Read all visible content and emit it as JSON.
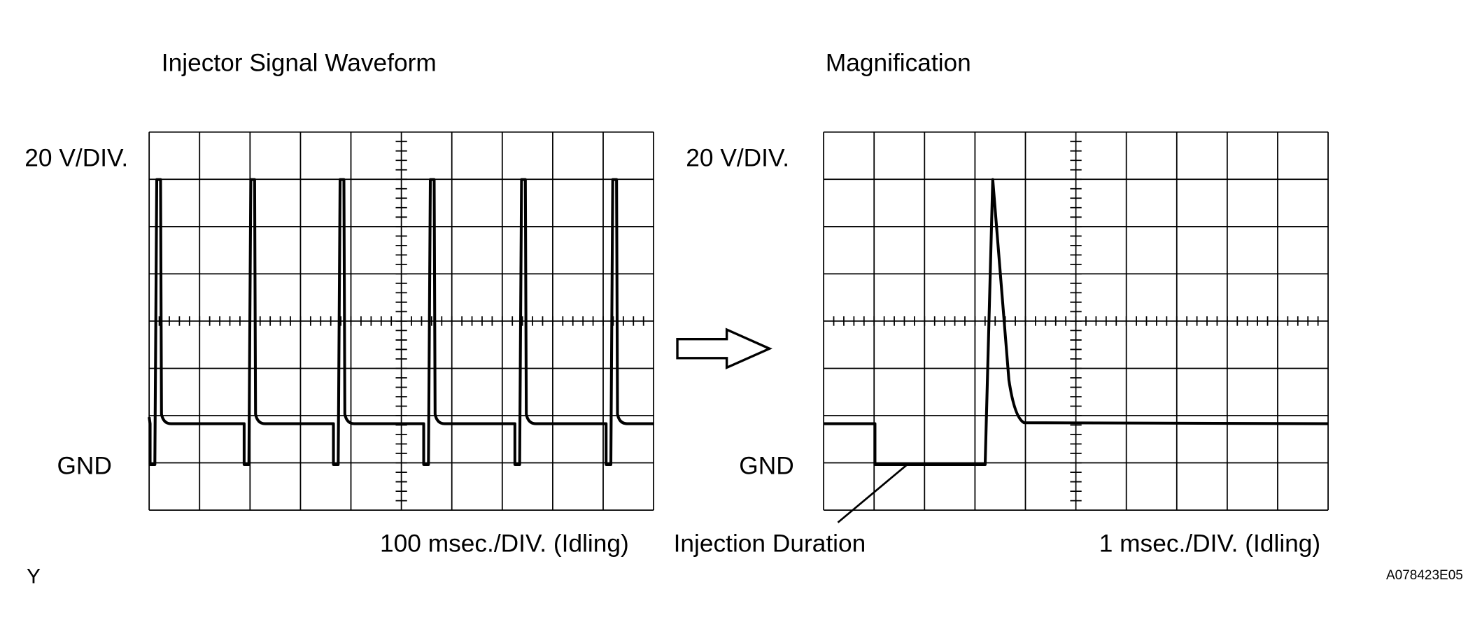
{
  "left_panel": {
    "title": "Injector Signal Waveform",
    "voltage_scale": "20 V/DIV.",
    "ground_label": "GND",
    "time_scale": "100 msec./DIV. (Idling)"
  },
  "right_panel": {
    "title": "Magnification",
    "voltage_scale": "20 V/DIV.",
    "ground_label": "GND",
    "time_scale": "1 msec./DIV. (Idling)",
    "annotation": "Injection Duration"
  },
  "footer": {
    "mark": "Y",
    "figure_id": "A078423E05"
  }
}
